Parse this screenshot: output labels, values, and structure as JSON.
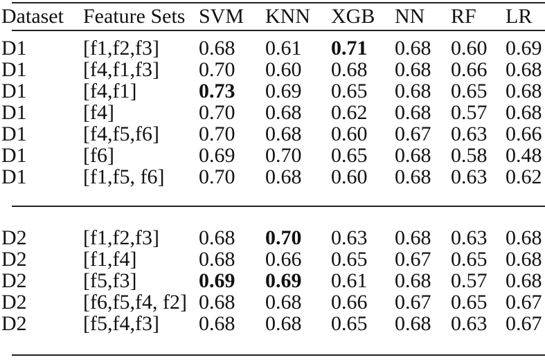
{
  "style": {
    "background_color": "#ffffff",
    "text_color": "#111111",
    "rule_color": "#1f1f1f"
  },
  "chart_data": {
    "type": "table",
    "columns": [
      "Dataset",
      "Feature Sets",
      "SVM",
      "KNN",
      "XGB",
      "NN",
      "RF",
      "LR"
    ],
    "sections": [
      {
        "name": "D1",
        "rows": [
          {
            "cells": [
              "D1",
              "[f1,f2,f3]",
              "0.68",
              "0.61",
              "0.71",
              "0.68",
              "0.60",
              "0.69"
            ],
            "bold": [
              4
            ]
          },
          {
            "cells": [
              "D1",
              "[f4,f1,f3]",
              "0.70",
              "0.60",
              "0.68",
              "0.68",
              "0.66",
              "0.68"
            ],
            "bold": []
          },
          {
            "cells": [
              "D1",
              "[f4,f1]",
              "0.73",
              "0.69",
              "0.65",
              "0.68",
              "0.65",
              "0.68"
            ],
            "bold": [
              2
            ]
          },
          {
            "cells": [
              "D1",
              "[f4]",
              "0.70",
              "0.68",
              "0.62",
              "0.68",
              "0.57",
              "0.68"
            ],
            "bold": []
          },
          {
            "cells": [
              "D1",
              "[f4,f5,f6]",
              "0.70",
              "0.68",
              "0.60",
              "0.67",
              "0.63",
              "0.66"
            ],
            "bold": []
          },
          {
            "cells": [
              "D1",
              "[f6]",
              "0.69",
              "0.70",
              "0.65",
              "0.68",
              "0.58",
              "0.48"
            ],
            "bold": []
          },
          {
            "cells": [
              "D1",
              "[f1,f5, f6]",
              "0.70",
              "0.68",
              "0.60",
              "0.68",
              "0.63",
              "0.62"
            ],
            "bold": []
          }
        ]
      },
      {
        "name": "D2",
        "rows": [
          {
            "cells": [
              "D2",
              "[f1,f2,f3]",
              "0.68",
              "0.70",
              "0.63",
              "0.68",
              "0.63",
              "0.68"
            ],
            "bold": [
              3
            ]
          },
          {
            "cells": [
              "D2",
              "[f1,f4]",
              "0.68",
              "0.66",
              "0.65",
              "0.67",
              "0.65",
              "0.68"
            ],
            "bold": []
          },
          {
            "cells": [
              "D2",
              "[f5,f3]",
              "0.69",
              "0.69",
              "0.61",
              "0.68",
              "0.57",
              "0.68"
            ],
            "bold": [
              2,
              3
            ]
          },
          {
            "cells": [
              "D2",
              "[f6,f5,f4, f2]",
              "0.68",
              "0.68",
              "0.66",
              "0.67",
              "0.65",
              "0.67"
            ],
            "bold": []
          },
          {
            "cells": [
              "D2",
              "[f5,f4,f3]",
              "0.68",
              "0.68",
              "0.65",
              "0.68",
              "0.63",
              "0.67"
            ],
            "bold": []
          }
        ]
      }
    ]
  }
}
